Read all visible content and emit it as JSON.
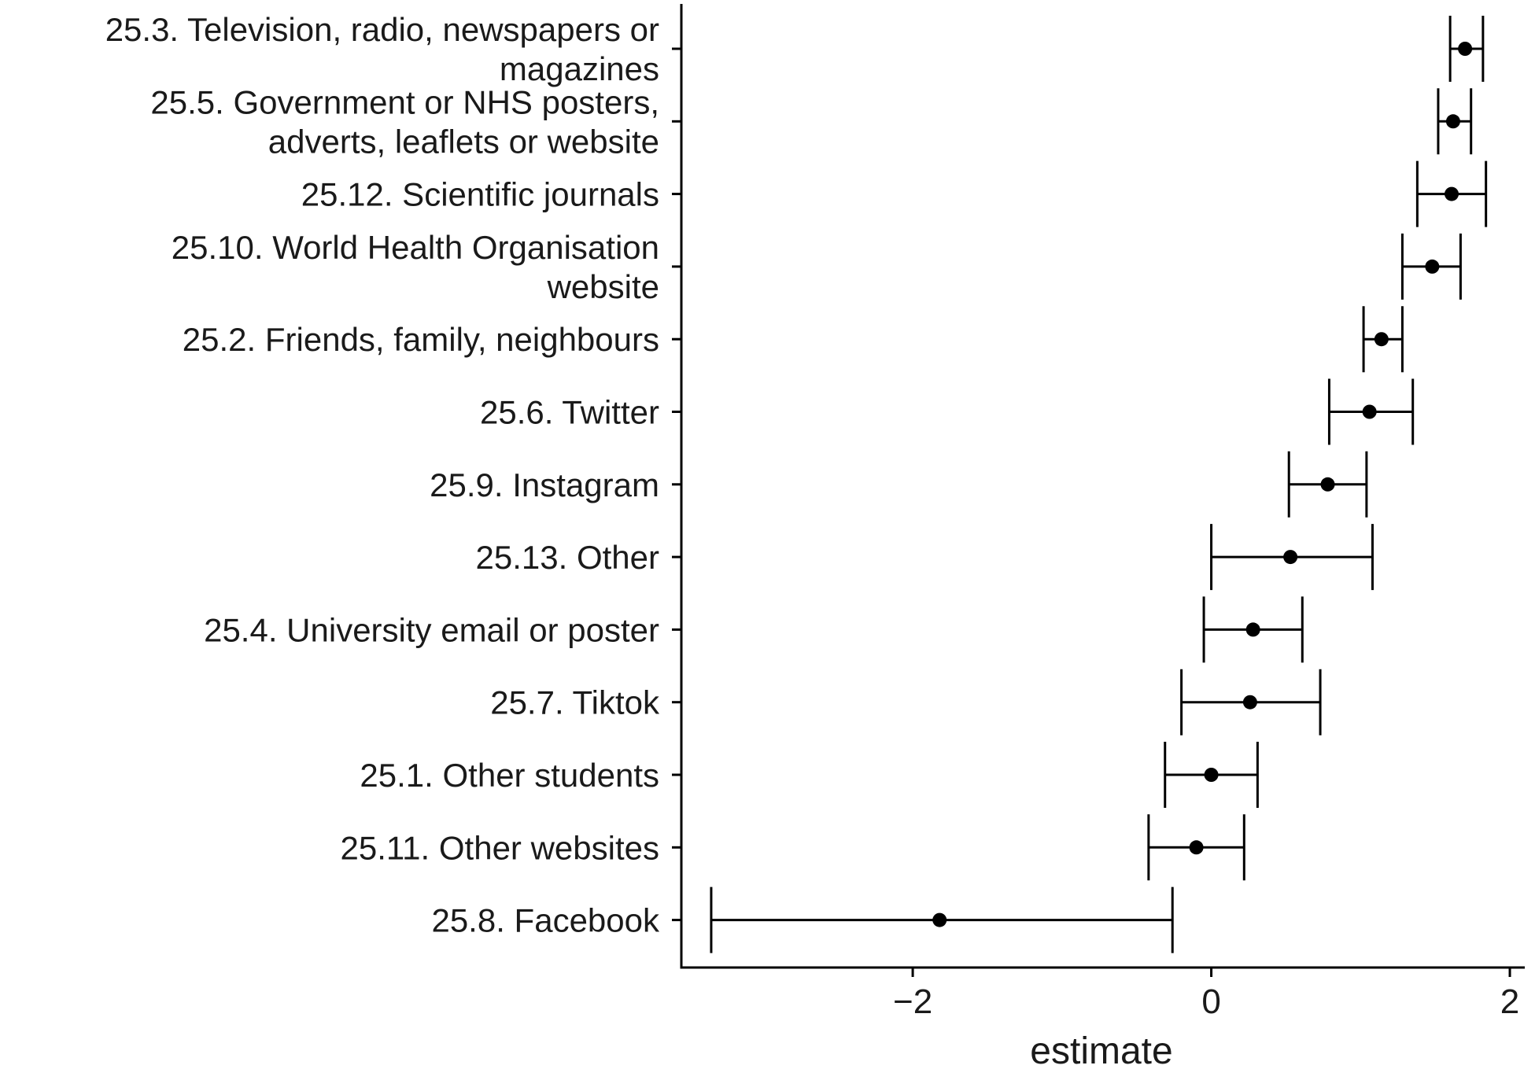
{
  "chart_data": {
    "type": "errorbar",
    "xlabel": "estimate",
    "ylabel": "",
    "xlim": [
      -3.55,
      2.1
    ],
    "x_ticks": [
      -2,
      0,
      2
    ],
    "x_tick_labels": [
      "−2",
      "0",
      "2"
    ],
    "grid": false,
    "legend": "none",
    "colors": {
      "marks": "#000000",
      "axis": "#000000"
    },
    "categories": [
      {
        "label": [
          "25.3. Television, radio, newspapers or",
          "magazines"
        ],
        "estimate": 1.7,
        "lower": 1.6,
        "upper": 1.82
      },
      {
        "label": [
          "25.5. Government or NHS posters,",
          "adverts, leaflets or website"
        ],
        "estimate": 1.62,
        "lower": 1.52,
        "upper": 1.74
      },
      {
        "label": [
          "25.12. Scientific journals"
        ],
        "estimate": 1.61,
        "lower": 1.38,
        "upper": 1.84
      },
      {
        "label": [
          "25.10. World Health Organisation",
          "website"
        ],
        "estimate": 1.48,
        "lower": 1.28,
        "upper": 1.67
      },
      {
        "label": [
          "25.2. Friends, family, neighbours"
        ],
        "estimate": 1.14,
        "lower": 1.02,
        "upper": 1.28
      },
      {
        "label": [
          "25.6. Twitter"
        ],
        "estimate": 1.06,
        "lower": 0.79,
        "upper": 1.35
      },
      {
        "label": [
          "25.9. Instagram"
        ],
        "estimate": 0.78,
        "lower": 0.52,
        "upper": 1.04
      },
      {
        "label": [
          "25.13. Other"
        ],
        "estimate": 0.53,
        "lower": 0.0,
        "upper": 1.08
      },
      {
        "label": [
          "25.4. University email or poster"
        ],
        "estimate": 0.28,
        "lower": -0.05,
        "upper": 0.61
      },
      {
        "label": [
          "25.7. Tiktok"
        ],
        "estimate": 0.26,
        "lower": -0.2,
        "upper": 0.73
      },
      {
        "label": [
          "25.1. Other students"
        ],
        "estimate": 0.0,
        "lower": -0.31,
        "upper": 0.31
      },
      {
        "label": [
          "25.11. Other websites"
        ],
        "estimate": -0.1,
        "lower": -0.42,
        "upper": 0.22
      },
      {
        "label": [
          "25.8. Facebook"
        ],
        "estimate": -1.82,
        "lower": -3.35,
        "upper": -0.26
      }
    ]
  }
}
